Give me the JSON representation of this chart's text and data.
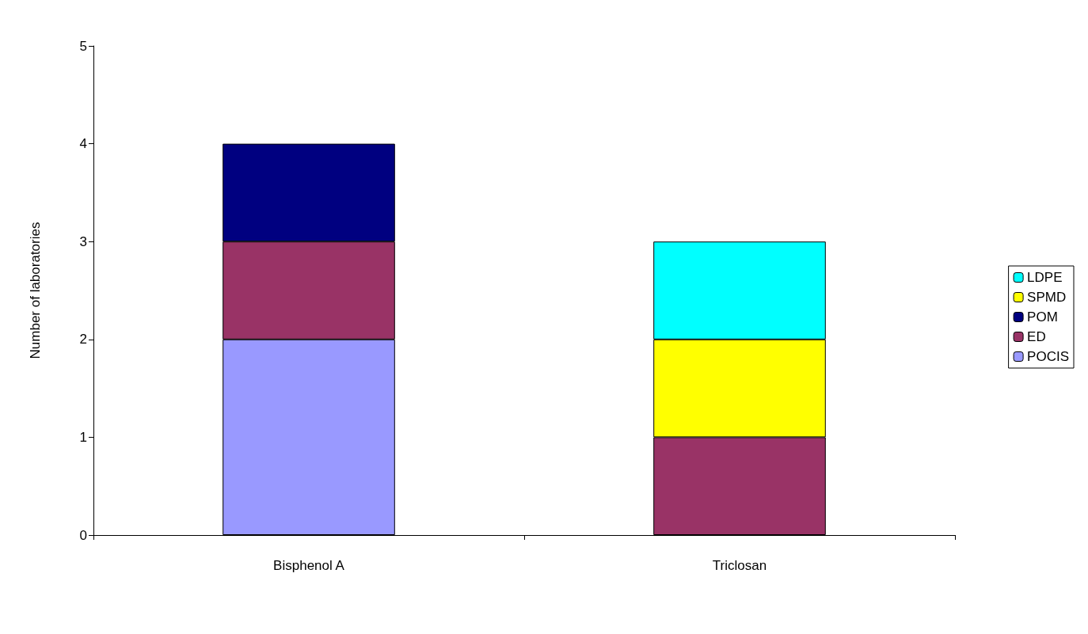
{
  "chart_data": {
    "type": "bar",
    "stacked": true,
    "ylabel": "Number of laboratories",
    "categories": [
      "Bisphenol A",
      "Triclosan"
    ],
    "series": [
      {
        "name": "POCIS",
        "color": "#9999ff",
        "values": [
          2,
          0
        ]
      },
      {
        "name": "ED",
        "color": "#993366",
        "values": [
          1,
          1
        ]
      },
      {
        "name": "POM",
        "color": "#000080",
        "values": [
          1,
          0
        ]
      },
      {
        "name": "SPMD",
        "color": "#ffff00",
        "values": [
          0,
          1
        ]
      },
      {
        "name": "LDPE",
        "color": "#00ffff",
        "values": [
          0,
          1
        ]
      }
    ],
    "ylim": [
      0,
      5
    ],
    "yticks": [
      0,
      1,
      2,
      3,
      4,
      5
    ],
    "grid": false,
    "legend": "right"
  }
}
